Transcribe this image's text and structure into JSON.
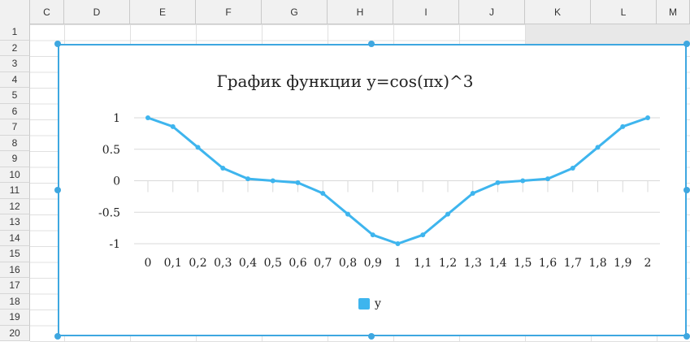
{
  "spreadsheet": {
    "columns": [
      "C",
      "D",
      "E",
      "F",
      "G",
      "H",
      "I",
      "J",
      "K",
      "L",
      "M"
    ],
    "rows": [
      "1",
      "2",
      "3",
      "4",
      "5",
      "6",
      "7",
      "8",
      "9",
      "10",
      "11",
      "12",
      "13",
      "14",
      "15",
      "16",
      "17",
      "18",
      "19",
      "20"
    ]
  },
  "chart_data": {
    "type": "line",
    "title": "График функции y=cos(πx)^3",
    "categories": [
      "0",
      "0,1",
      "0,2",
      "0,3",
      "0,4",
      "0,5",
      "0,6",
      "0,7",
      "0,8",
      "0,9",
      "1",
      "1,1",
      "1,2",
      "1,3",
      "1,4",
      "1,5",
      "1,6",
      "1,7",
      "1,8",
      "1,9",
      "2"
    ],
    "series": [
      {
        "name": "y",
        "values": [
          1,
          0.86,
          0.53,
          0.2,
          0.03,
          0,
          -0.03,
          -0.2,
          -0.53,
          -0.86,
          -1,
          -0.86,
          -0.53,
          -0.2,
          -0.03,
          0,
          0.03,
          0.2,
          0.53,
          0.86,
          1
        ],
        "color": "#3eb5ee"
      }
    ],
    "yticks": [
      "1",
      "0.5",
      "0",
      "-0.5",
      "-1"
    ],
    "ytick_values": [
      1,
      0.5,
      0,
      -0.5,
      -1
    ],
    "ylim": [
      -1,
      1
    ],
    "grid": true,
    "legend": "bottom"
  }
}
